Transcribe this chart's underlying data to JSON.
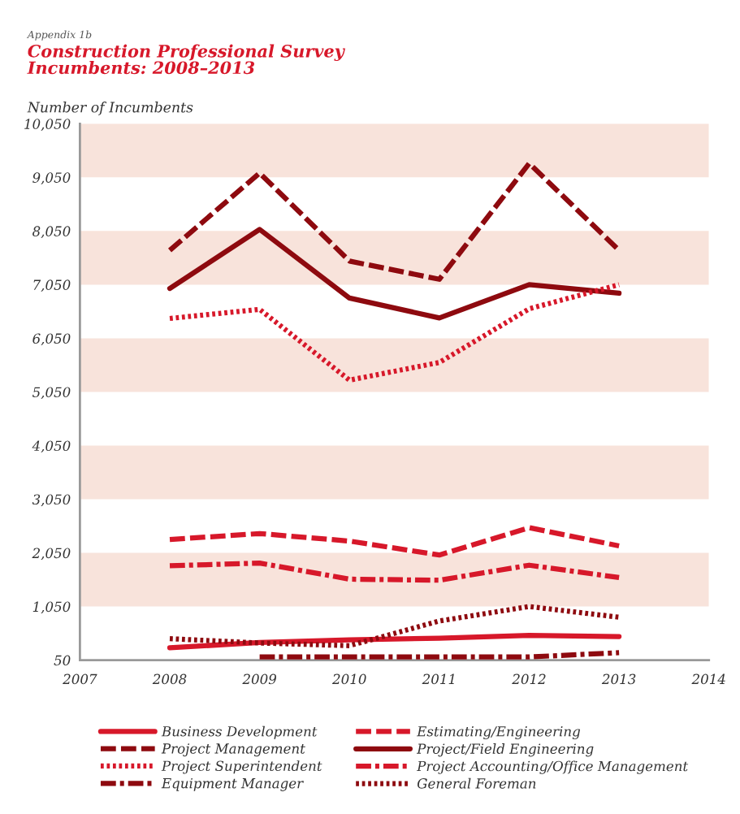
{
  "chart_data": {
    "type": "line",
    "subtitle": "Appendix 1b",
    "title": "Construction Professional Survey\nIncumbents: 2008–2013",
    "ylabel": "Number of Incumbents",
    "x": [
      2008,
      2009,
      2010,
      2011,
      2012,
      2013
    ],
    "xlim": [
      2007,
      2014
    ],
    "xticks": [
      2007,
      2008,
      2009,
      2010,
      2011,
      2012,
      2013,
      2014
    ],
    "ylim": [
      50,
      10050
    ],
    "yticks": [
      {
        "value": 50,
        "label": "50"
      },
      {
        "value": 1050,
        "label": "1,050"
      },
      {
        "value": 2050,
        "label": "2,050"
      },
      {
        "value": 3050,
        "label": "3,050"
      },
      {
        "value": 4050,
        "label": "4,050"
      },
      {
        "value": 5050,
        "label": "5,050"
      },
      {
        "value": 6050,
        "label": "6,050"
      },
      {
        "value": 7050,
        "label": "7,050"
      },
      {
        "value": 8050,
        "label": "8,050"
      },
      {
        "value": 9050,
        "label": "9,050"
      },
      {
        "value": 10050,
        "label": "10,050"
      }
    ],
    "grid": false,
    "legend": "bottom",
    "marker": "none",
    "bands": [
      {
        "axis": "y",
        "from": 1050,
        "to": 2050,
        "color": "#f8e3db"
      },
      {
        "axis": "y",
        "from": 3050,
        "to": 4050,
        "color": "#f8e3db"
      },
      {
        "axis": "y",
        "from": 5050,
        "to": 6050,
        "color": "#f8e3db"
      },
      {
        "axis": "y",
        "from": 7050,
        "to": 8050,
        "color": "#f8e3db"
      },
      {
        "axis": "y",
        "from": 9050,
        "to": 10050,
        "color": "#f8e3db"
      }
    ],
    "series": [
      {
        "name": "Business Development",
        "color": "#d7182a",
        "line_style": "solid",
        "values": [
          280,
          380,
          430,
          460,
          510,
          490
        ]
      },
      {
        "name": "Estimating/Engineering",
        "color": "#d7182a",
        "line_style": "dashed",
        "values": [
          2300,
          2410,
          2270,
          2010,
          2520,
          2180
        ]
      },
      {
        "name": "Project Management",
        "color": "#8e0a0f",
        "line_style": "dashed",
        "values": [
          7690,
          9130,
          7490,
          7150,
          9310,
          7690
        ]
      },
      {
        "name": "Project/Field Engineering",
        "color": "#8e0a0f",
        "line_style": "solid",
        "values": [
          6980,
          8080,
          6800,
          6430,
          7050,
          6890
        ]
      },
      {
        "name": "Project Superintendent",
        "color": "#d7182a",
        "line_style": "dotted",
        "values": [
          6420,
          6590,
          5270,
          5600,
          6600,
          7050
        ]
      },
      {
        "name": "Project Accounting/Office Management",
        "color": "#d7182a",
        "line_style": "dashdot",
        "values": [
          1810,
          1860,
          1560,
          1540,
          1820,
          1590
        ]
      },
      {
        "name": "Equipment Manager",
        "color": "#8e0a0f",
        "line_style": "dashdot",
        "values": [
          null,
          110,
          110,
          110,
          110,
          190
        ]
      },
      {
        "name": "General Foreman",
        "color": "#8e0a0f",
        "line_style": "dotted",
        "values": [
          450,
          370,
          320,
          780,
          1050,
          850
        ]
      }
    ]
  }
}
